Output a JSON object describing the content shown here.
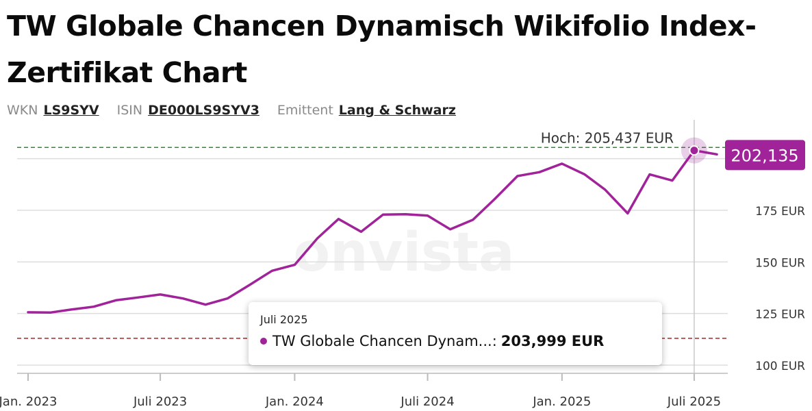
{
  "header": {
    "title": "TW Globale Chancen Dynamisch Wikifolio Index-Zertifikat Chart"
  },
  "meta": {
    "wkn_label": "WKN",
    "wkn_value": "LS9SYV",
    "isin_label": "ISIN",
    "isin_value": "DE000LS9SYV3",
    "issuer_label": "Emittent",
    "issuer_value": "Lang & Schwarz"
  },
  "watermark": "onvista",
  "tooltip": {
    "date": "Juli 2025",
    "series_label": "TW Globale Chancen Dynam...:",
    "value": "203,999 EUR"
  },
  "high_label": "Hoch: 205,437 EUR",
  "current_label": "202,135",
  "colors": {
    "line": "#a0239a",
    "high_line": "#2e8b2e",
    "low_line": "#b22222",
    "grid": "#dddddd"
  },
  "chart_data": {
    "type": "line",
    "series": [
      {
        "x": [
          "2023-01-01",
          "2023-02-01",
          "2023-03-01",
          "2023-04-01",
          "2023-05-01",
          "2023-06-01",
          "2023-07-01",
          "2023-08-01",
          "2023-09-01",
          "2023-10-01",
          "2023-11-01",
          "2023-12-01",
          "2024-01-01",
          "2024-02-01",
          "2024-03-01",
          "2024-04-01",
          "2024-05-01",
          "2024-06-01",
          "2024-07-01",
          "2024-08-01",
          "2024-09-01",
          "2024-10-01",
          "2024-11-01",
          "2024-12-01",
          "2025-01-01",
          "2025-02-01",
          "2025-03-01",
          "2025-04-01",
          "2025-05-01",
          "2025-06-01",
          "2025-07-01",
          "2025-08-01"
        ],
        "values": [
          125.6,
          125.5,
          126.9,
          128.3,
          131.4,
          132.8,
          134.2,
          132.3,
          129.3,
          132.3,
          139.0,
          145.7,
          148.6,
          161.4,
          170.8,
          164.6,
          172.9,
          173.1,
          172.4,
          165.8,
          170.4,
          180.5,
          191.6,
          193.5,
          197.6,
          192.4,
          185.0,
          173.5,
          192.4,
          189.4,
          204.0,
          202.1
        ]
      }
    ],
    "x_ticks": [
      {
        "date": "2023-01-01",
        "label": "Jan. 2023"
      },
      {
        "date": "2023-07-01",
        "label": "Juli 2023"
      },
      {
        "date": "2024-01-01",
        "label": "Jan. 2024"
      },
      {
        "date": "2024-07-01",
        "label": "Juli 2024"
      },
      {
        "date": "2025-01-01",
        "label": "Jan. 2025"
      },
      {
        "date": "2025-07-01",
        "label": "Juli 2025"
      }
    ],
    "y_ticks": [
      {
        "value": 100,
        "label": "100 EUR"
      },
      {
        "value": 125,
        "label": "125 EUR"
      },
      {
        "value": 150,
        "label": "150 EUR"
      },
      {
        "value": 175,
        "label": "175 EUR"
      },
      {
        "value": 200,
        "label": ""
      }
    ],
    "ylim": [
      95,
      210
    ],
    "high_value": 205.437,
    "low_value": 113.0,
    "hover_date": "2025-07-01",
    "hover_value": 204.0,
    "grid": true
  }
}
